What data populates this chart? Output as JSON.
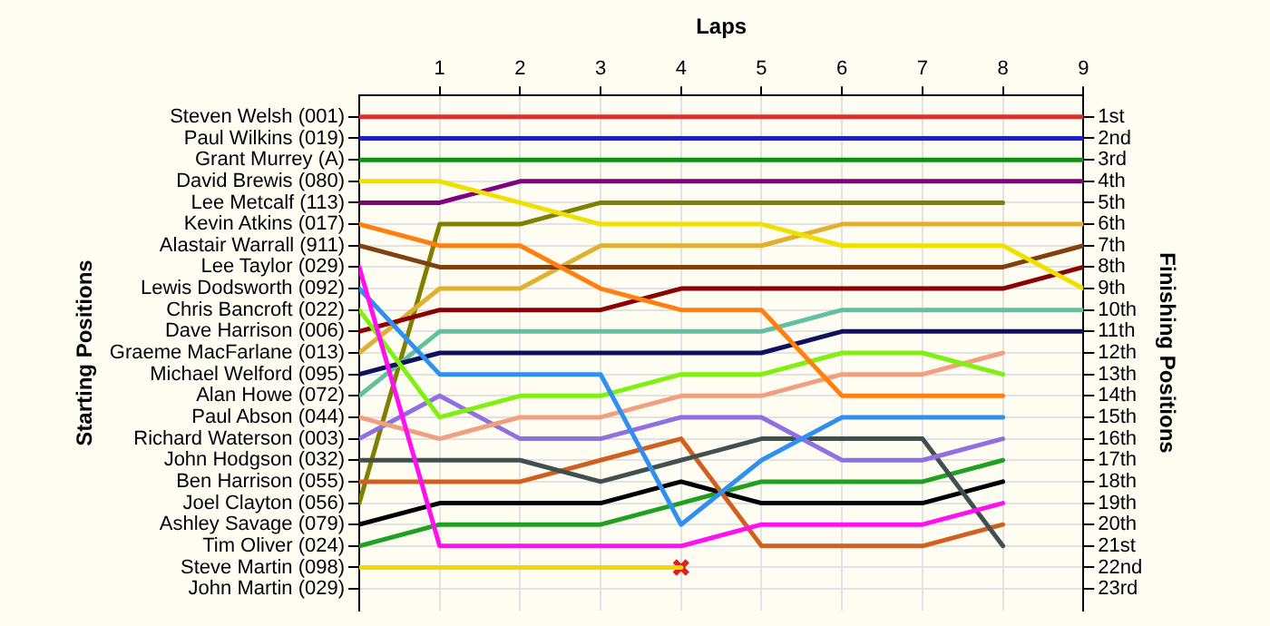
{
  "chart_data": {
    "type": "line",
    "xlabel": "Laps",
    "ylabel": "Finishing Positions",
    "annotations": [
      "Starting Positions"
    ],
    "x": [
      0,
      1,
      2,
      3,
      4,
      5,
      6,
      7,
      8,
      9
    ],
    "xlim": [
      0,
      9
    ],
    "xticks": [
      1,
      2,
      3,
      4,
      5,
      6,
      7,
      8,
      9
    ],
    "y2_categories": [
      "Steven Welsh (001)",
      "Paul Wilkins (019)",
      "Grant Murrey (A)",
      "David Brewis (080)",
      "Lee Metcalf (113)",
      "Kevin Atkins (017)",
      "Alastair Warrall (911)",
      "Lee Taylor (029)",
      "Lewis Dodsworth (092)",
      "Chris Bancroft (022)",
      "Dave Harrison (006)",
      "Graeme MacFarlane (013)",
      "Michael Welford (095)",
      "Alan Howe (072)",
      "Paul Abson (044)",
      "Richard Waterson (003)",
      "John Hodgson (032)",
      "Ben Harrison (055)",
      "Joel Clayton (056)",
      "Ashley Savage (079)",
      "Tim Oliver (024)",
      "Steve Martin (098)",
      "John Martin (029)"
    ],
    "ylim": [
      24,
      0
    ],
    "yticks": [
      {
        "value": 1,
        "label": "1st"
      },
      {
        "value": 2,
        "label": "2nd"
      },
      {
        "value": 3,
        "label": "3rd"
      },
      {
        "value": 4,
        "label": "4th"
      },
      {
        "value": 5,
        "label": "5th"
      },
      {
        "value": 6,
        "label": "6th"
      },
      {
        "value": 7,
        "label": "7th"
      },
      {
        "value": 8,
        "label": "8th"
      },
      {
        "value": 9,
        "label": "9th"
      },
      {
        "value": 10,
        "label": "10th"
      },
      {
        "value": 11,
        "label": "11th"
      },
      {
        "value": 12,
        "label": "12th"
      },
      {
        "value": 13,
        "label": "13th"
      },
      {
        "value": 14,
        "label": "14th"
      },
      {
        "value": 15,
        "label": "15th"
      },
      {
        "value": 16,
        "label": "16th"
      },
      {
        "value": 17,
        "label": "17th"
      },
      {
        "value": 18,
        "label": "18th"
      },
      {
        "value": 19,
        "label": "19th"
      },
      {
        "value": 20,
        "label": "20th"
      },
      {
        "value": 21,
        "label": "21st"
      },
      {
        "value": 22,
        "label": "22nd"
      },
      {
        "value": 23,
        "label": "23rd"
      }
    ],
    "grid": true,
    "legend": false,
    "marker": "none",
    "line_style": "solid",
    "series": [
      {
        "color": "#d93030",
        "values": [
          1,
          1,
          1,
          1,
          1,
          1,
          1,
          1,
          1,
          1
        ]
      },
      {
        "color": "#2020c0",
        "values": [
          2,
          2,
          2,
          2,
          2,
          2,
          2,
          2,
          2,
          2
        ]
      },
      {
        "color": "#109010",
        "values": [
          3,
          3,
          3,
          3,
          3,
          3,
          3,
          3,
          3,
          3
        ]
      },
      {
        "color": "#f0e000",
        "values": [
          4,
          4,
          5,
          6,
          6,
          6,
          7,
          7,
          7,
          9
        ]
      },
      {
        "color": "#800080",
        "values": [
          5,
          5,
          4,
          4,
          4,
          4,
          4,
          4,
          4,
          4
        ]
      },
      {
        "color": "#ff8010",
        "values": [
          6,
          7,
          7,
          9,
          10,
          10,
          14,
          14,
          14,
          null
        ]
      },
      {
        "color": "#804010",
        "values": [
          7,
          8,
          8,
          8,
          8,
          8,
          8,
          8,
          8,
          7
        ]
      },
      {
        "color": "#ff10f0",
        "values": [
          8,
          21,
          21,
          21,
          21,
          20,
          20,
          20,
          19,
          null
        ]
      },
      {
        "color": "#3090f0",
        "values": [
          9,
          13,
          13,
          13,
          20,
          17,
          15,
          15,
          15,
          null
        ]
      },
      {
        "color": "#80f010",
        "values": [
          10,
          15,
          14,
          14,
          13,
          13,
          12,
          12,
          13,
          null
        ]
      },
      {
        "color": "#8b0000",
        "values": [
          11,
          10,
          10,
          10,
          9,
          9,
          9,
          9,
          9,
          8
        ]
      },
      {
        "color": "#e0b030",
        "values": [
          12,
          9,
          9,
          7,
          7,
          7,
          6,
          6,
          6,
          6
        ]
      },
      {
        "color": "#101060",
        "values": [
          13,
          12,
          12,
          12,
          12,
          12,
          11,
          11,
          11,
          11
        ]
      },
      {
        "color": "#60c0a0",
        "values": [
          14,
          11,
          11,
          11,
          11,
          11,
          10,
          10,
          10,
          10
        ]
      },
      {
        "color": "#f0a080",
        "values": [
          15,
          16,
          15,
          15,
          14,
          14,
          13,
          13,
          12,
          null
        ]
      },
      {
        "color": "#9070e0",
        "values": [
          16,
          14,
          16,
          16,
          15,
          15,
          17,
          17,
          16,
          null
        ]
      },
      {
        "color": "#405050",
        "values": [
          17,
          17,
          17,
          18,
          17,
          16,
          16,
          16,
          21,
          null
        ]
      },
      {
        "color": "#d06020",
        "values": [
          18,
          18,
          18,
          17,
          16,
          21,
          21,
          21,
          20,
          null
        ]
      },
      {
        "color": "#808000",
        "values": [
          19,
          6,
          6,
          5,
          5,
          5,
          5,
          5,
          5,
          null
        ]
      },
      {
        "color": "#000000",
        "values": [
          20,
          19,
          19,
          19,
          18,
          19,
          19,
          19,
          18,
          null
        ]
      },
      {
        "color": "#20a020",
        "values": [
          21,
          20,
          20,
          20,
          19,
          18,
          18,
          18,
          17,
          null
        ]
      },
      {
        "color": "#f0d800",
        "values": [
          22,
          22,
          22,
          22,
          22,
          null,
          null,
          null,
          null,
          null
        ]
      },
      {
        "type": "scatter",
        "color": "#e02020",
        "marker": "cross",
        "x": [
          4
        ],
        "values": [
          22
        ]
      }
    ]
  }
}
